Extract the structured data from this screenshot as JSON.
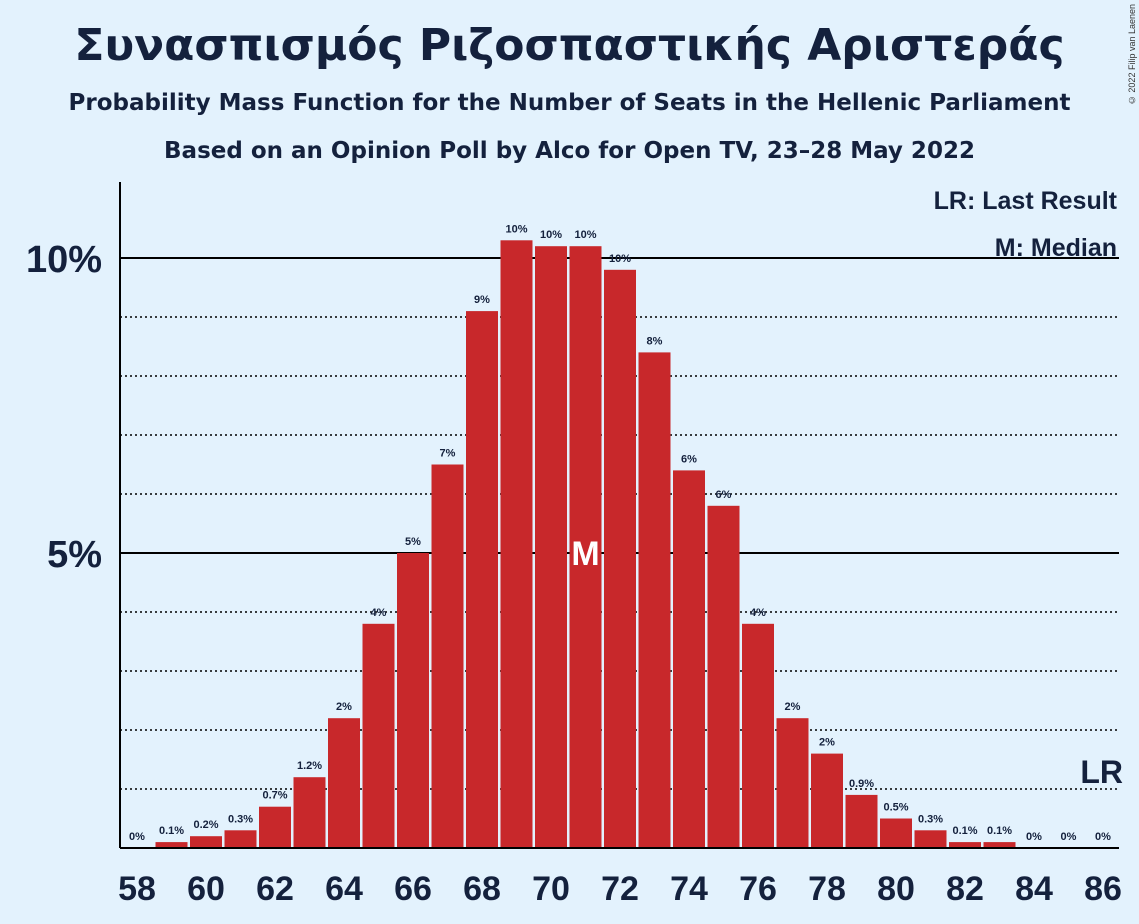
{
  "title": "Συνασπισμός Ριζοσπαστικής Αριστεράς",
  "subtitle1": "Probability Mass Function for the Number of Seats in the Hellenic Parliament",
  "subtitle2": "Based on an Opinion Poll by Alco for Open TV, 23–28 May 2022",
  "copyright": "© 2022 Filip van Laenen",
  "legend": {
    "last_result": "LR: Last Result",
    "median": "M: Median"
  },
  "colors": {
    "bar": "#c8282b",
    "background": "#e3f2fd",
    "text": "#14213d"
  },
  "chart_data": {
    "type": "bar",
    "x": [
      58,
      59,
      60,
      61,
      62,
      63,
      64,
      65,
      66,
      67,
      68,
      69,
      70,
      71,
      72,
      73,
      74,
      75,
      76,
      77,
      78,
      79,
      80,
      81,
      82,
      83,
      84,
      85,
      86
    ],
    "values": [
      0.0,
      0.1,
      0.2,
      0.3,
      0.7,
      1.2,
      2.2,
      3.8,
      5.0,
      6.5,
      9.1,
      10.3,
      10.2,
      10.2,
      9.8,
      8.4,
      6.4,
      5.8,
      3.8,
      2.2,
      1.6,
      0.9,
      0.5,
      0.3,
      0.1,
      0.1,
      0.0,
      0.0,
      0.0
    ],
    "labels": [
      "0%",
      "0.1%",
      "0.2%",
      "0.3%",
      "0.7%",
      "1.2%",
      "2%",
      "4%",
      "5%",
      "7%",
      "9%",
      "10%",
      "10%",
      "10%",
      "10%",
      "8%",
      "6%",
      "6%",
      "4%",
      "2%",
      "2%",
      "0.9%",
      "0.5%",
      "0.3%",
      "0.1%",
      "0.1%",
      "0%",
      "0%",
      "0%"
    ],
    "x_tick_labels": [
      "58",
      "60",
      "62",
      "64",
      "66",
      "68",
      "70",
      "72",
      "74",
      "76",
      "78",
      "80",
      "82",
      "84",
      "86"
    ],
    "y_tick_labels": [
      {
        "value": 5,
        "label": "5%"
      },
      {
        "value": 10,
        "label": "10%"
      }
    ],
    "ylim": [
      0,
      11
    ],
    "grid": true,
    "median": {
      "x": 71,
      "label": "M"
    },
    "last_result": {
      "label": "LR",
      "value": 1.0
    },
    "xlabel": "",
    "ylabel": ""
  }
}
